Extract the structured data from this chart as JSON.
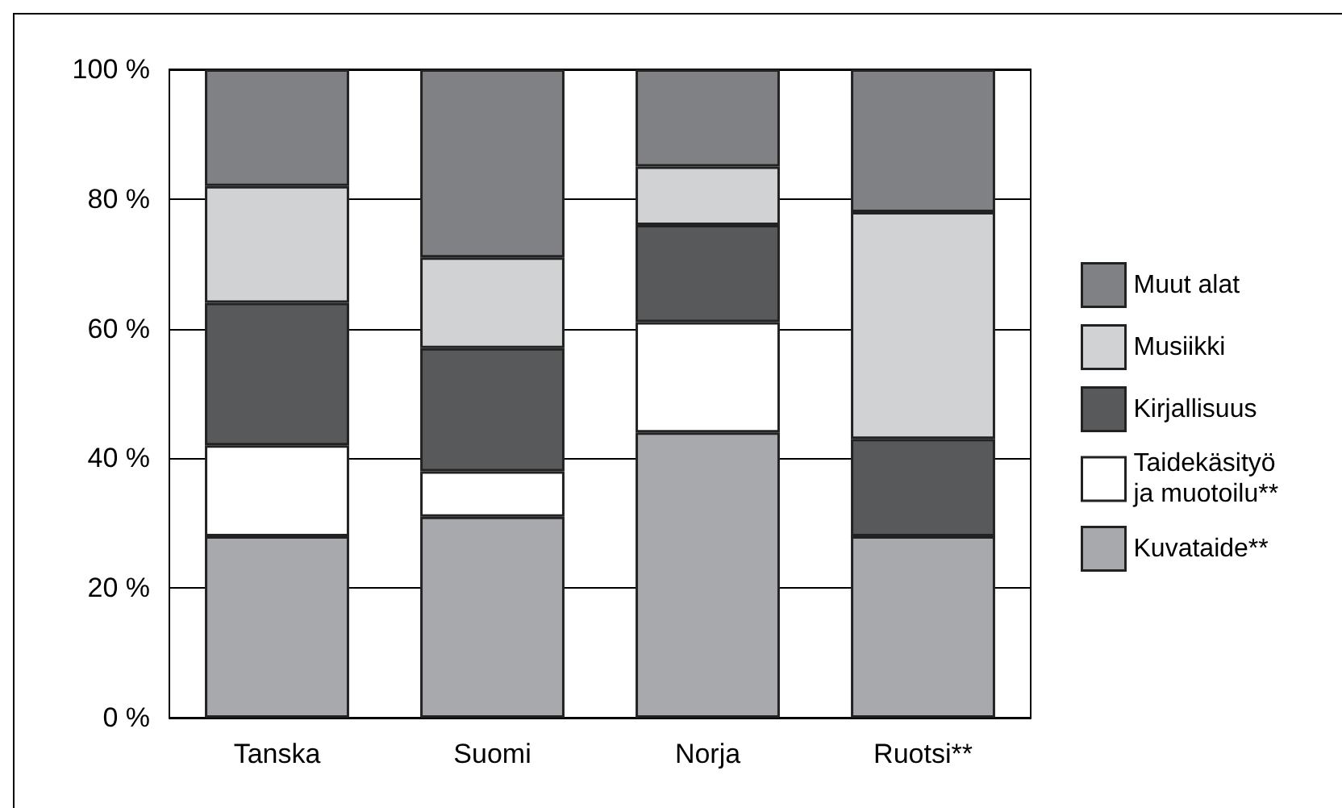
{
  "chart_data": {
    "type": "bar",
    "stacked": true,
    "categories": [
      "Tanska",
      "Suomi",
      "Norja",
      "Ruotsi**"
    ],
    "series": [
      {
        "name": "Kuvataide**",
        "color": "#a8a9ad",
        "values": [
          28,
          31,
          44,
          28
        ]
      },
      {
        "name": "Taidekäsityö ja muotoilu**",
        "color": "#ffffff",
        "values": [
          14,
          7,
          17,
          0
        ]
      },
      {
        "name": "Kirjallisuus",
        "color": "#58595b",
        "values": [
          22,
          19,
          15,
          15
        ]
      },
      {
        "name": "Musiikki",
        "color": "#d1d2d4",
        "values": [
          18,
          14,
          9,
          35
        ]
      },
      {
        "name": "Muut alat",
        "color": "#808184",
        "values": [
          18,
          29,
          15,
          22
        ]
      }
    ],
    "ylim": [
      0,
      100
    ],
    "yticks": [
      {
        "value": 0,
        "label": "0 %"
      },
      {
        "value": 20,
        "label": "20 %"
      },
      {
        "value": 40,
        "label": "40 %"
      },
      {
        "value": 60,
        "label": "60 %"
      },
      {
        "value": 80,
        "label": "80 %"
      },
      {
        "value": 100,
        "label": "100 %"
      }
    ],
    "grid": "y",
    "legend": "right"
  }
}
